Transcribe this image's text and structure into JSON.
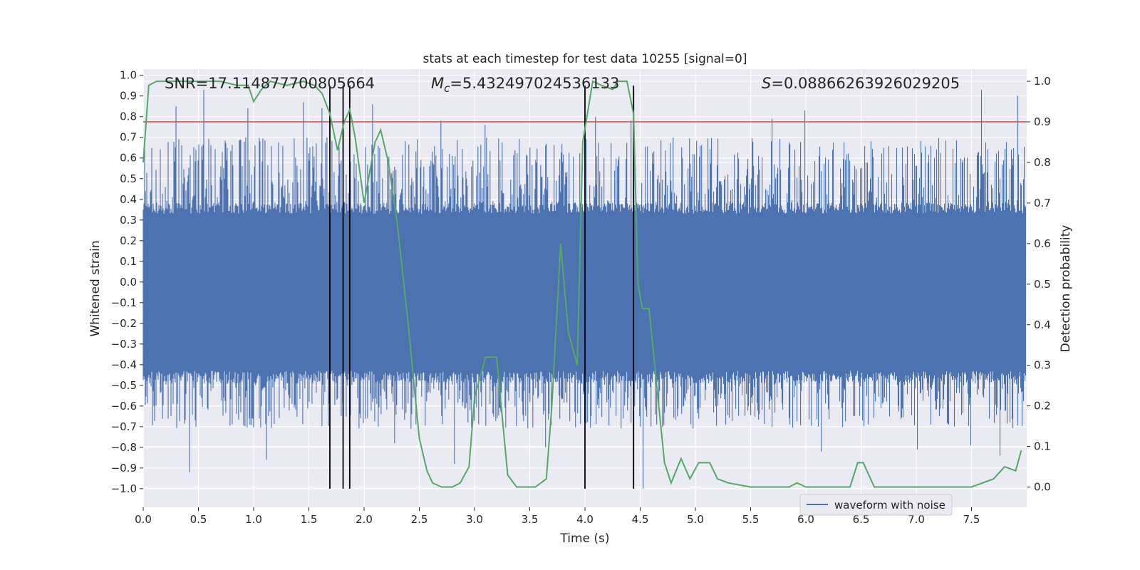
{
  "chart_data": {
    "type": "line",
    "title": "stats at each timestep for test data 10255 [signal=0]",
    "xlabel": "Time (s)",
    "ylabel": "Whitened strain",
    "y2label": "Detection probability",
    "xlim": [
      0.0,
      8.0
    ],
    "ylim": [
      -1.09,
      1.03
    ],
    "y2lim": [
      -0.05,
      1.03
    ],
    "xticks": [
      "0.0",
      "0.5",
      "1.0",
      "1.5",
      "2.0",
      "2.5",
      "3.0",
      "3.5",
      "4.0",
      "4.5",
      "5.0",
      "5.5",
      "6.0",
      "6.5",
      "7.0",
      "7.5"
    ],
    "yticks": [
      "1.0",
      "0.9",
      "0.8",
      "0.7",
      "0.6",
      "0.5",
      "0.4",
      "0.3",
      "0.2",
      "0.1",
      "0.0",
      "−0.1",
      "−0.2",
      "−0.3",
      "−0.4",
      "−0.5",
      "−0.6",
      "−0.7",
      "−0.8",
      "−0.9",
      "−1.0"
    ],
    "y2ticks": [
      "1.0",
      "0.9",
      "0.8",
      "0.7",
      "0.6",
      "0.5",
      "0.4",
      "0.3",
      "0.2",
      "0.1",
      "0.0"
    ],
    "annotations": {
      "snr": "SNR=17.114877700805664",
      "mc_symbol": "M",
      "mc_sub": "c",
      "mc_value": "=5.432497024536133",
      "s_symbol": "S",
      "s_value": "=0.08866263926029205"
    },
    "legend": {
      "label": "waveform with noise",
      "location": "lower-right"
    },
    "threshold": {
      "y2": 0.9,
      "color": "#c44e52"
    },
    "vlines": [
      1.69,
      1.81,
      1.87,
      4.0,
      4.44
    ],
    "probability": {
      "name": "Detection probability",
      "color": "#55a868",
      "t": [
        0.0,
        0.05,
        0.12,
        0.3,
        0.5,
        0.7,
        0.85,
        0.95,
        1.0,
        1.07,
        1.15,
        1.3,
        1.45,
        1.55,
        1.62,
        1.69,
        1.76,
        1.82,
        1.87,
        1.92,
        2.0,
        2.1,
        2.15,
        2.22,
        2.3,
        2.4,
        2.5,
        2.57,
        2.62,
        2.7,
        2.8,
        2.87,
        2.95,
        3.0,
        3.1,
        3.2,
        3.3,
        3.38,
        3.45,
        3.55,
        3.65,
        3.7,
        3.78,
        3.85,
        3.93,
        3.98,
        4.07,
        4.15,
        4.25,
        4.3,
        4.38,
        4.44,
        4.48,
        4.52,
        4.58,
        4.65,
        4.72,
        4.78,
        4.87,
        4.95,
        5.03,
        5.13,
        5.2,
        5.3,
        5.5,
        5.7,
        5.85,
        5.92,
        6.0,
        6.1,
        6.25,
        6.4,
        6.47,
        6.52,
        6.62,
        6.7,
        6.8,
        7.0,
        7.3,
        7.5,
        7.7,
        7.8,
        7.9,
        7.95
      ],
      "p": [
        0.8,
        0.99,
        1.0,
        1.0,
        1.0,
        1.0,
        0.99,
        0.99,
        0.95,
        0.98,
        1.0,
        0.99,
        1.0,
        0.99,
        0.97,
        0.92,
        0.83,
        0.9,
        0.93,
        0.86,
        0.7,
        0.85,
        0.88,
        0.8,
        0.65,
        0.4,
        0.12,
        0.04,
        0.01,
        0.0,
        0.0,
        0.01,
        0.05,
        0.22,
        0.32,
        0.32,
        0.03,
        0.0,
        0.0,
        0.0,
        0.02,
        0.2,
        0.6,
        0.38,
        0.3,
        0.85,
        1.0,
        0.99,
        0.98,
        1.0,
        1.0,
        0.92,
        0.5,
        0.44,
        0.44,
        0.25,
        0.06,
        0.01,
        0.07,
        0.02,
        0.06,
        0.06,
        0.02,
        0.01,
        0.0,
        0.0,
        0.0,
        0.01,
        0.0,
        0.0,
        0.0,
        0.0,
        0.06,
        0.06,
        0.0,
        0.0,
        0.0,
        0.0,
        0.0,
        0.0,
        0.02,
        0.05,
        0.04,
        0.09
      ]
    },
    "waveform": {
      "name": "waveform with noise",
      "color": "#4c72b0",
      "description": "dense whitened strain samples; upper envelope about 0.35-0.65 with spikes to 0.93, lower envelope about -0.45 to -0.65 with spikes to -1.0",
      "core_amplitude": 0.32,
      "top_peaks": [
        [
          0.55,
          0.93
        ],
        [
          1.45,
          0.87
        ],
        [
          2.08,
          0.86
        ],
        [
          7.6,
          0.93
        ],
        [
          7.93,
          0.9
        ],
        [
          0.3,
          0.85
        ],
        [
          0.95,
          0.84
        ],
        [
          1.62,
          0.84
        ],
        [
          4.1,
          0.8
        ],
        [
          6.0,
          0.83
        ],
        [
          4.42,
          0.78
        ],
        [
          5.7,
          0.79
        ],
        [
          3.1,
          0.76
        ],
        [
          2.7,
          0.78
        ]
      ],
      "bottom_peaks": [
        [
          0.42,
          -0.92
        ],
        [
          1.12,
          -0.86
        ],
        [
          2.28,
          -0.78
        ],
        [
          2.82,
          -0.88
        ],
        [
          3.65,
          -0.8
        ],
        [
          4.53,
          -1.0
        ],
        [
          6.15,
          -0.82
        ],
        [
          7.02,
          -0.81
        ],
        [
          7.5,
          -0.79
        ],
        [
          7.77,
          -0.84
        ]
      ]
    }
  }
}
